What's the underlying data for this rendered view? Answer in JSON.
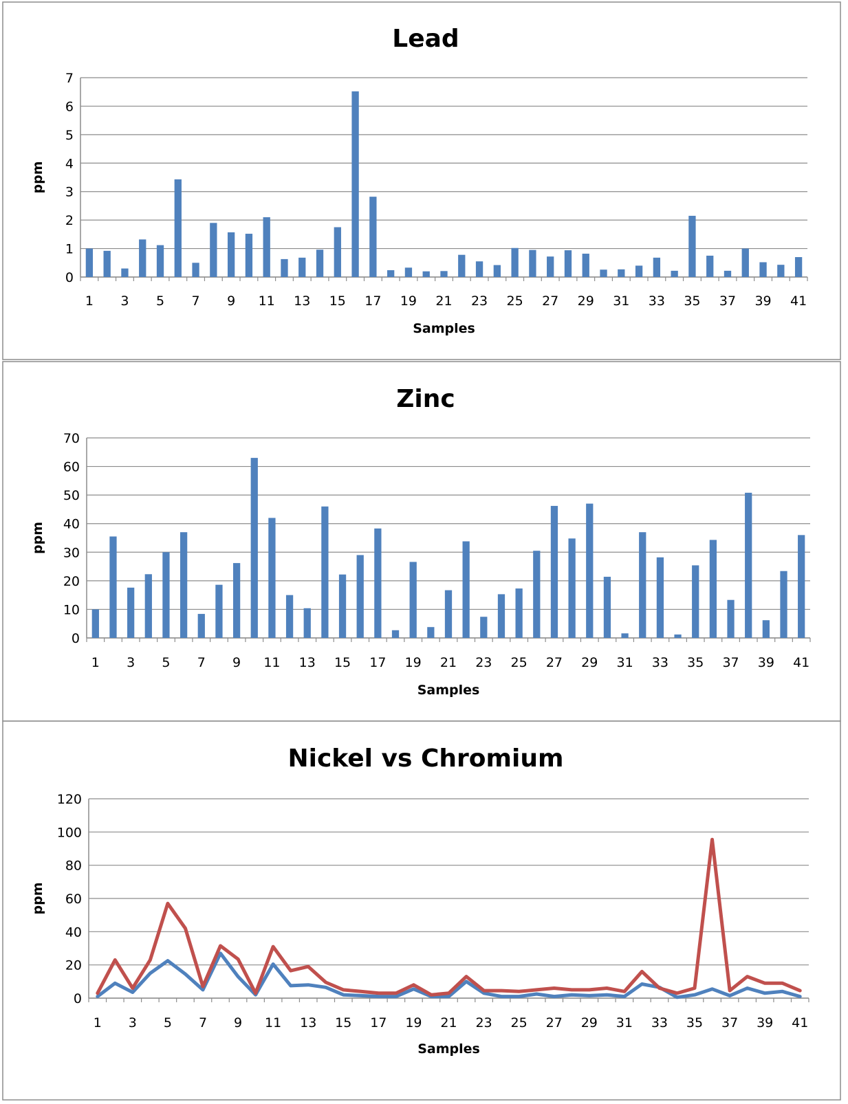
{
  "chart_data": [
    {
      "type": "bar",
      "title": "Lead",
      "xlabel": "Samples",
      "ylabel": "ppm",
      "ylim": [
        0,
        7
      ],
      "ytick_step": 1,
      "categories": [
        "1",
        "2",
        "3",
        "4",
        "5",
        "6",
        "7",
        "8",
        "9",
        "10",
        "11",
        "12",
        "13",
        "14",
        "15",
        "16",
        "17",
        "18",
        "19",
        "20",
        "21",
        "22",
        "23",
        "24",
        "25",
        "26",
        "27",
        "28",
        "29",
        "30",
        "31",
        "32",
        "33",
        "34",
        "35",
        "36",
        "37",
        "38",
        "39",
        "40",
        "41"
      ],
      "x_tick_labels": [
        "1",
        "3",
        "5",
        "7",
        "9",
        "11",
        "13",
        "15",
        "17",
        "19",
        "21",
        "23",
        "25",
        "27",
        "29",
        "31",
        "33",
        "35",
        "37",
        "39",
        "41"
      ],
      "values": [
        1.0,
        0.92,
        0.3,
        1.32,
        1.12,
        3.43,
        0.5,
        1.9,
        1.57,
        1.52,
        2.1,
        0.63,
        0.68,
        0.96,
        1.75,
        6.52,
        2.82,
        0.24,
        0.33,
        0.2,
        0.21,
        0.78,
        0.55,
        0.42,
        1.02,
        0.95,
        0.72,
        0.94,
        0.82,
        0.26,
        0.27,
        0.4,
        0.68,
        0.22,
        2.15,
        0.75,
        0.22,
        1.0,
        0.52,
        0.43,
        0.7
      ],
      "color": "#4f81bd",
      "grid": true,
      "legend": false
    },
    {
      "type": "bar",
      "title": "Zinc",
      "xlabel": "Samples",
      "ylabel": "ppm",
      "ylim": [
        0,
        70
      ],
      "ytick_step": 10,
      "categories": [
        "1",
        "2",
        "3",
        "4",
        "5",
        "6",
        "7",
        "8",
        "9",
        "10",
        "11",
        "12",
        "13",
        "14",
        "15",
        "16",
        "17",
        "18",
        "19",
        "20",
        "21",
        "22",
        "23",
        "24",
        "25",
        "26",
        "27",
        "28",
        "29",
        "30",
        "31",
        "32",
        "33",
        "34",
        "35",
        "36",
        "37",
        "38",
        "39",
        "40",
        "41"
      ],
      "x_tick_labels": [
        "1",
        "3",
        "5",
        "7",
        "9",
        "11",
        "13",
        "15",
        "17",
        "19",
        "21",
        "23",
        "25",
        "27",
        "29",
        "31",
        "33",
        "35",
        "37",
        "39",
        "41"
      ],
      "values": [
        10,
        35.5,
        17.6,
        22.3,
        30,
        37,
        8.4,
        18.6,
        26.2,
        63,
        42,
        15,
        10.4,
        46,
        22.2,
        29,
        38.3,
        2.7,
        26.6,
        3.8,
        16.7,
        33.8,
        7.4,
        15.3,
        17.3,
        30.5,
        46.2,
        34.8,
        47,
        21.4,
        1.6,
        37,
        28.2,
        1.2,
        25.4,
        34.3,
        13.3,
        50.8,
        6.2,
        23.4,
        36
      ]
    },
    {
      "type": "line",
      "title": "Nickel vs Chromium",
      "xlabel": "Samples",
      "ylabel": "ppm",
      "ylim": [
        0,
        120
      ],
      "ytick_step": 20,
      "x": [
        1,
        2,
        3,
        4,
        5,
        6,
        7,
        8,
        9,
        10,
        11,
        12,
        13,
        14,
        15,
        16,
        17,
        18,
        19,
        20,
        21,
        22,
        23,
        24,
        25,
        26,
        27,
        28,
        29,
        30,
        31,
        32,
        33,
        34,
        35,
        36,
        37,
        38,
        39,
        40,
        41
      ],
      "x_tick_labels": [
        "1",
        "3",
        "5",
        "7",
        "9",
        "11",
        "13",
        "15",
        "17",
        "19",
        "21",
        "23",
        "25",
        "27",
        "29",
        "31",
        "33",
        "35",
        "37",
        "39",
        "41"
      ],
      "series": [
        {
          "color": "#4f81bd",
          "values": [
            1,
            9,
            3.5,
            15,
            22.5,
            14.5,
            5,
            27,
            13,
            2,
            20.5,
            7.5,
            8,
            6.5,
            2,
            1.5,
            1,
            1,
            5.5,
            1,
            1,
            10,
            3,
            1,
            1,
            2.5,
            1,
            2,
            1.5,
            2,
            1,
            8.5,
            6.5,
            0.5,
            2,
            5.5,
            1.5,
            6,
            3,
            4,
            1
          ]
        },
        {
          "color": "#c0504d",
          "values": [
            3,
            23,
            6,
            23,
            57,
            42,
            7,
            31.5,
            23.5,
            3,
            31,
            16.5,
            19,
            9.5,
            5,
            4,
            3,
            3,
            8,
            2,
            3,
            13,
            4.5,
            4.5,
            4,
            5,
            6,
            5,
            5,
            6,
            4,
            16,
            6,
            3,
            6,
            95.5,
            4.5,
            13,
            9,
            9,
            4.5
          ]
        }
      ],
      "grid": true,
      "legend": false
    }
  ]
}
